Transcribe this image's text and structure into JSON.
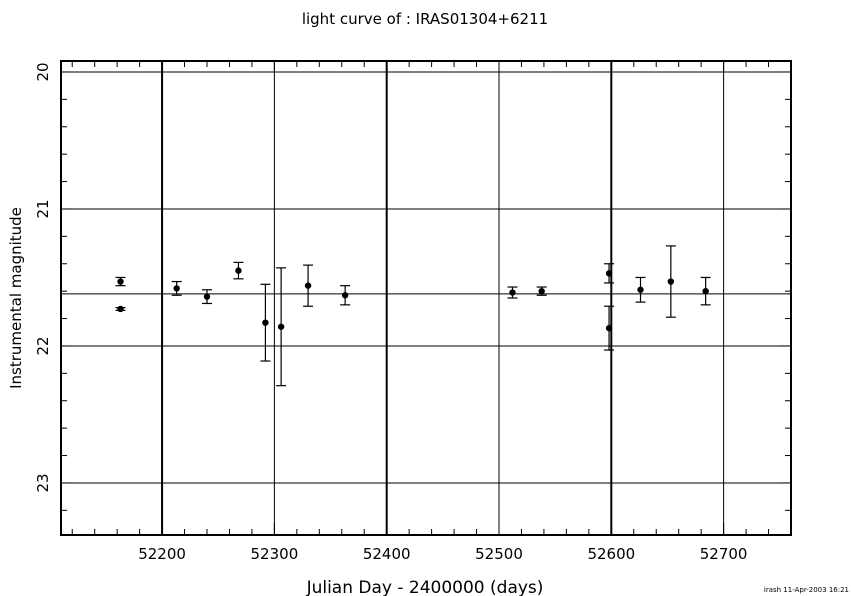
{
  "chart_data": {
    "type": "scatter",
    "title": "light curve of : IRAS01304+6211",
    "xlabel": "Julian Day - 2400000 (days)",
    "ylabel": "Instrumental magnitude",
    "footer": "irash 11-Apr-2003 16:21",
    "xlim": [
      52110,
      52760
    ],
    "ylim": [
      23.38,
      19.92
    ],
    "y_inverted": true,
    "xticks": [
      52200,
      52300,
      52400,
      52500,
      52600,
      52700
    ],
    "xtick_labels": [
      "52200",
      "52300",
      "52400",
      "52500",
      "52600",
      "52700"
    ],
    "yticks": [
      20,
      21,
      22,
      23
    ],
    "ytick_labels": [
      "20",
      "21",
      "22",
      "23"
    ],
    "x_minor_step": 20,
    "y_minor_step": 0.2,
    "grid": true,
    "grid_x": [
      52200,
      52300,
      52400,
      52500,
      52600,
      52700
    ],
    "grid_y": [
      20,
      21,
      21.62,
      22,
      23
    ],
    "thick_grid_x": [
      52200,
      52400,
      52600
    ],
    "points": [
      {
        "x": 52163,
        "y": 21.53,
        "err": 0.03
      },
      {
        "x": 52163,
        "y": 21.73,
        "err": 0.01
      },
      {
        "x": 52213,
        "y": 21.58,
        "err": 0.05
      },
      {
        "x": 52240,
        "y": 21.64,
        "err": 0.05
      },
      {
        "x": 52268,
        "y": 21.45,
        "err": 0.06
      },
      {
        "x": 52292,
        "y": 21.83,
        "err": 0.28
      },
      {
        "x": 52306,
        "y": 21.86,
        "err": 0.43
      },
      {
        "x": 52330,
        "y": 21.56,
        "err": 0.15
      },
      {
        "x": 52363,
        "y": 21.63,
        "err": 0.07
      },
      {
        "x": 52512,
        "y": 21.61,
        "err": 0.04
      },
      {
        "x": 52538,
        "y": 21.6,
        "err": 0.03
      },
      {
        "x": 52598,
        "y": 21.47,
        "err": 0.07
      },
      {
        "x": 52598,
        "y": 21.87,
        "err": 0.16
      },
      {
        "x": 52626,
        "y": 21.59,
        "err": 0.09
      },
      {
        "x": 52653,
        "y": 21.53,
        "err": 0.26
      },
      {
        "x": 52684,
        "y": 21.6,
        "err": 0.1
      }
    ]
  }
}
